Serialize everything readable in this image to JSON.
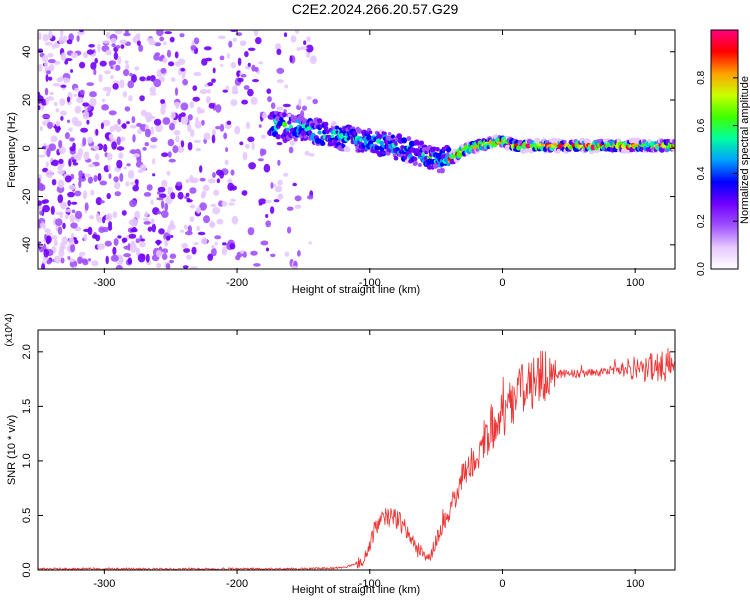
{
  "title": "C2E2.2024.266.20.57.G29",
  "colors": {
    "snr_line": "#ee3333",
    "axis": "#000000",
    "colormap": [
      "#ffffff",
      "#e6c8ff",
      "#a050ff",
      "#7000ff",
      "#0000ff",
      "#00a0ff",
      "#00ffa0",
      "#40ff00",
      "#c8ff00",
      "#ffa000",
      "#ff0000",
      "#ff0080"
    ]
  },
  "chart_data": [
    {
      "type": "heatmap",
      "title": "C2E2.2024.266.20.57.G29",
      "xlabel": "Height of straight line (km)",
      "ylabel": "Frequency (Hz)",
      "xlim": [
        -350,
        130
      ],
      "ylim": [
        -50,
        49
      ],
      "xticks": [
        -300,
        -200,
        -100,
        0,
        100
      ],
      "yticks": [
        -40,
        -20,
        0,
        20,
        40
      ],
      "colorbar": {
        "label": "Normalized spectral amplitude",
        "range": [
          0.0,
          1.0
        ],
        "ticks": [
          "0.0",
          "0.2",
          "0.4",
          "0.6",
          "0.8"
        ]
      },
      "signal_track": {
        "x": [
          -175,
          -150,
          -125,
          -100,
          -75,
          -55,
          -40,
          -30,
          -20,
          -10,
          0,
          10,
          40,
          70,
          100,
          130
        ],
        "freq": [
          10,
          8,
          5,
          3,
          0,
          -4,
          -5,
          -1,
          1,
          2,
          3,
          1,
          1,
          1,
          1,
          1
        ]
      },
      "noise_region_x": [
        -350,
        -140
      ]
    },
    {
      "type": "line",
      "xlabel": "Height of straight line (km)",
      "ylabel": "SNR (10 * v/v)",
      "y_multiplier": "(x10^4)",
      "xlim": [
        -350,
        130
      ],
      "ylim": [
        0,
        2.2
      ],
      "xticks": [
        -300,
        -200,
        -100,
        0,
        100
      ],
      "yticks": [
        "0.0",
        "0.5",
        "1.0",
        "1.5",
        "2.0"
      ],
      "series": [
        {
          "x": [
            -350,
            -300,
            -250,
            -200,
            -150,
            -120,
            -105,
            -95,
            -85,
            -75,
            -65,
            -55,
            -45,
            -35,
            -25,
            -15,
            -5,
            5,
            15,
            30,
            45,
            60,
            80,
            100,
            115,
            130
          ],
          "values": [
            0.01,
            0.01,
            0.01,
            0.01,
            0.01,
            0.02,
            0.08,
            0.4,
            0.5,
            0.42,
            0.2,
            0.1,
            0.42,
            0.7,
            0.95,
            1.15,
            1.35,
            1.5,
            1.65,
            1.77,
            1.8,
            1.8,
            1.82,
            1.85,
            1.85,
            1.85
          ]
        }
      ]
    }
  ]
}
